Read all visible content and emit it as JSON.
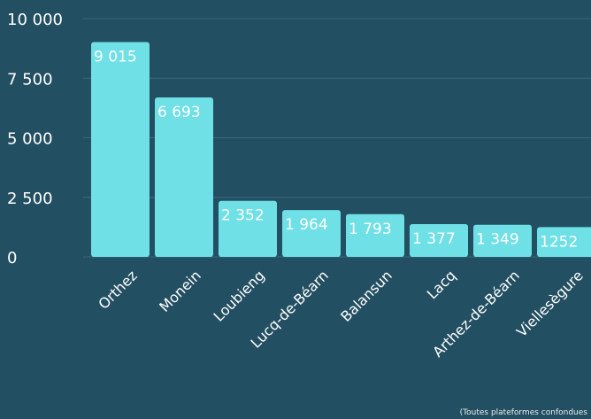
{
  "chart_data": {
    "type": "bar",
    "categories": [
      "Orthez",
      "Monein",
      "Loubieng",
      "Lucq-de-Béarn",
      "Balansun",
      "Lacq",
      "Arthez-de-Béarn",
      "Viellesègure"
    ],
    "values": [
      9015,
      6693,
      2352,
      1964,
      1793,
      1377,
      1349,
      1252
    ],
    "value_labels": [
      "9 015",
      "6 693",
      "2 352",
      "1 964",
      "1 793",
      "1 377",
      "1 349",
      "1252"
    ],
    "y_ticks": [
      0,
      2500,
      5000,
      7500,
      10000
    ],
    "y_tick_labels": [
      "0",
      "2 500",
      "5 000",
      "7 500",
      "10 000"
    ],
    "ylim": [
      0,
      10000
    ],
    "grid": true,
    "title": "",
    "xlabel": "",
    "ylabel": "",
    "colors": {
      "background": "#234f62",
      "bar": "#6fe0e6",
      "text": "#ffffff",
      "grid": "#3a6a7c"
    }
  },
  "footnote": "(Toutes plateformes confondues"
}
